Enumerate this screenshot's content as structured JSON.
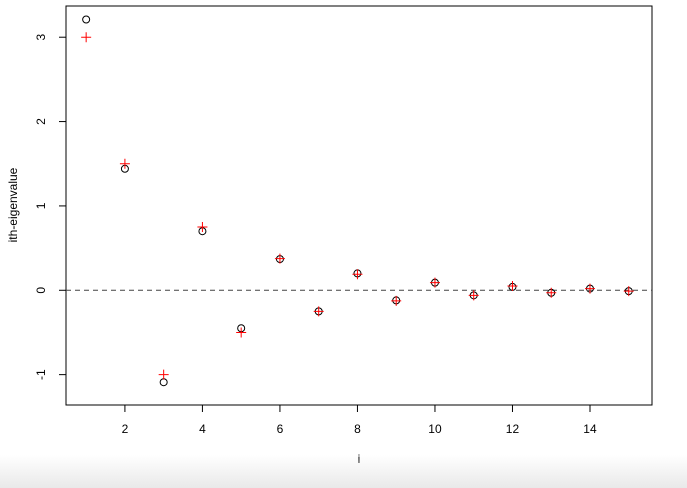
{
  "chart_data": {
    "type": "scatter",
    "x_label": "i",
    "y_label": "ith-eigenvalue",
    "x": [
      1,
      2,
      3,
      4,
      5,
      6,
      7,
      8,
      9,
      10,
      11,
      12,
      13,
      14,
      15
    ],
    "series": [
      {
        "color": "#000000",
        "marker": "circle",
        "values": [
          3.21,
          1.44,
          -1.09,
          0.7,
          -0.45,
          0.37,
          -0.25,
          0.2,
          -0.12,
          0.09,
          -0.06,
          0.04,
          -0.03,
          0.02,
          -0.01
        ]
      },
      {
        "color": "#ff0000",
        "marker": "plus",
        "values": [
          3.0,
          1.5,
          -1.0,
          0.75,
          -0.5,
          0.375,
          -0.25,
          0.19,
          -0.125,
          0.09,
          -0.06,
          0.05,
          -0.03,
          0.02,
          -0.01
        ]
      }
    ],
    "hline": 0,
    "xlim": [
      0.48,
      15.6
    ],
    "ylim": [
      -1.36,
      3.37
    ],
    "xticks": [
      2,
      4,
      6,
      8,
      10,
      12,
      14
    ],
    "yticks": [
      -1,
      0,
      1,
      2,
      3
    ],
    "grid": false
  }
}
